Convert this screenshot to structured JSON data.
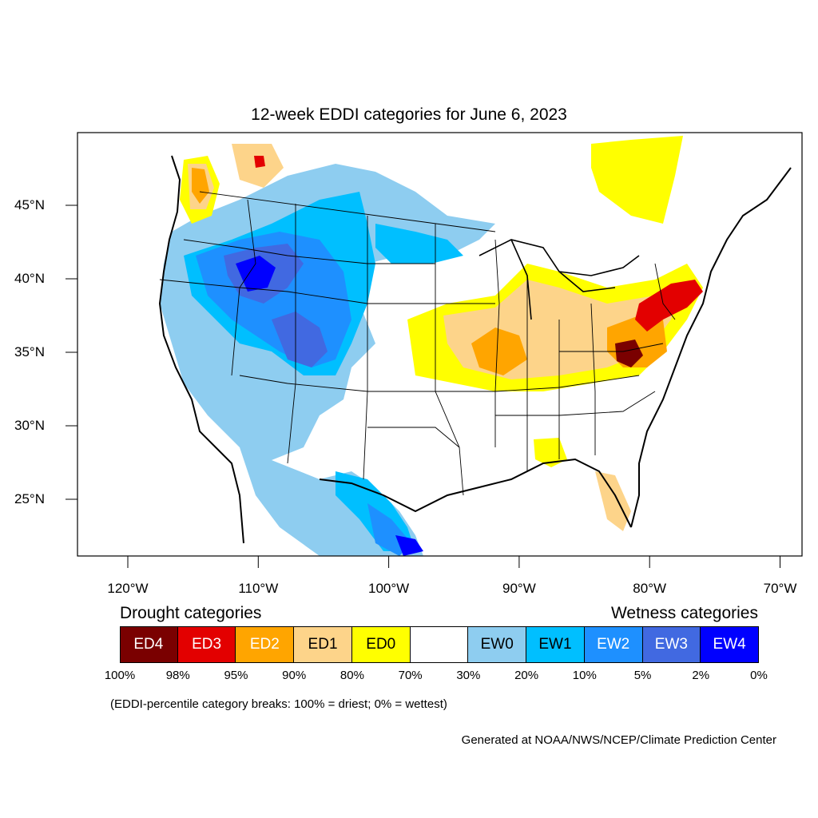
{
  "title": "12-week EDDI categories for June 6, 2023",
  "lat_ticks": [
    {
      "value": 45,
      "label": "45°N"
    },
    {
      "value": 40,
      "label": "40°N"
    },
    {
      "value": 35,
      "label": "35°N"
    },
    {
      "value": 30,
      "label": "30°N"
    },
    {
      "value": 25,
      "label": "25°N"
    }
  ],
  "lon_ticks": [
    {
      "value": -120,
      "label": "120°W"
    },
    {
      "value": -110,
      "label": "110°W"
    },
    {
      "value": -100,
      "label": "100°W"
    },
    {
      "value": -90,
      "label": "90°W"
    },
    {
      "value": -80,
      "label": "80°W"
    },
    {
      "value": -70,
      "label": "70°W"
    }
  ],
  "legend": {
    "drought_heading": "Drought categories",
    "wetness_heading": "Wetness categories",
    "categories": [
      {
        "label": "ED4",
        "color": "#7a0000",
        "text_color": "#ffffff"
      },
      {
        "label": "ED3",
        "color": "#e30000",
        "text_color": "#ffffff"
      },
      {
        "label": "ED2",
        "color": "#ffa500",
        "text_color": "#ffffff"
      },
      {
        "label": "ED1",
        "color": "#fdd48a",
        "text_color": "#000000"
      },
      {
        "label": "ED0",
        "color": "#ffff00",
        "text_color": "#000000"
      },
      {
        "label": "",
        "color": "#ffffff",
        "text_color": "#000000"
      },
      {
        "label": "EW0",
        "color": "#8ecdf0",
        "text_color": "#000000"
      },
      {
        "label": "EW1",
        "color": "#00bfff",
        "text_color": "#000000"
      },
      {
        "label": "EW2",
        "color": "#1e90ff",
        "text_color": "#ffffff"
      },
      {
        "label": "EW3",
        "color": "#4169e1",
        "text_color": "#ffffff"
      },
      {
        "label": "EW4",
        "color": "#0000ff",
        "text_color": "#ffffff"
      }
    ],
    "breaks": [
      "100%",
      "98%",
      "95%",
      "90%",
      "80%",
      "70%",
      "30%",
      "20%",
      "10%",
      "5%",
      "2%",
      "0%"
    ]
  },
  "note": "(EDDI-percentile category breaks: 100% = driest; 0% = wettest)",
  "credit": "Generated at NOAA/NWS/NCEP/Climate Prediction Center"
}
